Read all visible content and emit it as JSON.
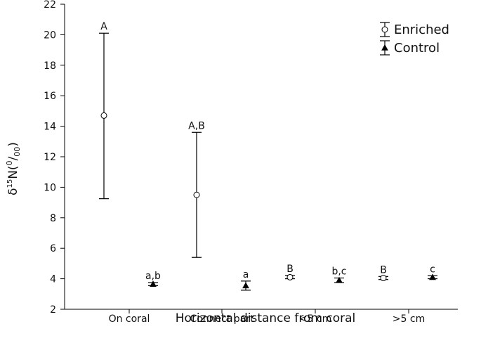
{
  "chart_data": {
    "type": "scatter",
    "ylabel": {
      "prefix": "δ",
      "sup1": "15",
      "mid": "N(",
      "sup2": "0",
      "slash": "/",
      "sub": "00",
      "suffix": ")"
    },
    "xlabel": "Horizontal distance from coral",
    "ylim": [
      2,
      22
    ],
    "yticks": [
      2,
      4,
      6,
      8,
      10,
      12,
      14,
      16,
      18,
      20,
      22
    ],
    "categories": [
      "On coral",
      "Connect part",
      "<5 cm",
      ">5 cm"
    ],
    "legend_position": "top-right",
    "series": [
      {
        "name": "Enriched",
        "marker": "open-circle",
        "values": [
          14.7,
          9.5,
          4.1,
          4.05
        ],
        "err_low": [
          9.25,
          5.4,
          4.0,
          3.95
        ],
        "err_high": [
          20.1,
          13.6,
          4.22,
          4.15
        ],
        "labels": [
          "A",
          "A,B",
          "B",
          "B"
        ]
      },
      {
        "name": "Control",
        "marker": "filled-triangle",
        "values": [
          3.65,
          3.55,
          3.9,
          4.1
        ],
        "err_low": [
          3.55,
          3.25,
          3.75,
          4.0
        ],
        "err_high": [
          3.75,
          3.85,
          4.05,
          4.2
        ],
        "labels": [
          "a,b",
          "a",
          "b,c",
          "c"
        ]
      }
    ]
  }
}
